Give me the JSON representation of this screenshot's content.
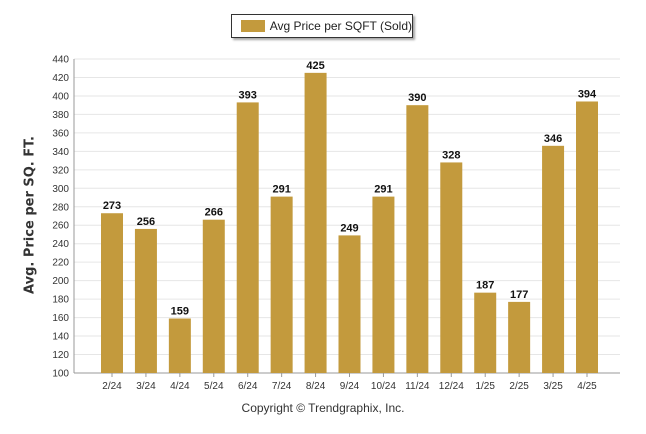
{
  "chart_data": {
    "type": "bar",
    "categories": [
      "2/24",
      "3/24",
      "4/24",
      "5/24",
      "6/24",
      "7/24",
      "8/24",
      "9/24",
      "10/24",
      "11/24",
      "12/24",
      "1/25",
      "2/25",
      "3/25",
      "4/25"
    ],
    "series": [
      {
        "name": "Avg Price per SQFT (Sold)",
        "values": [
          273,
          256,
          159,
          266,
          393,
          291,
          425,
          249,
          291,
          390,
          328,
          187,
          177,
          346,
          394
        ]
      }
    ],
    "ylabel": "Avg. Price per SQ. FT.",
    "xlabel": "",
    "ylim": [
      100,
      440
    ],
    "yticks": [
      100,
      120,
      140,
      160,
      180,
      200,
      220,
      240,
      260,
      280,
      300,
      320,
      340,
      360,
      380,
      400,
      420,
      440
    ],
    "grid": true,
    "legend_position": "top-center",
    "bar_color": "#c39a3d",
    "data_labels": true
  },
  "footer": {
    "copyright": "Copyright © Trendgraphix, Inc."
  }
}
